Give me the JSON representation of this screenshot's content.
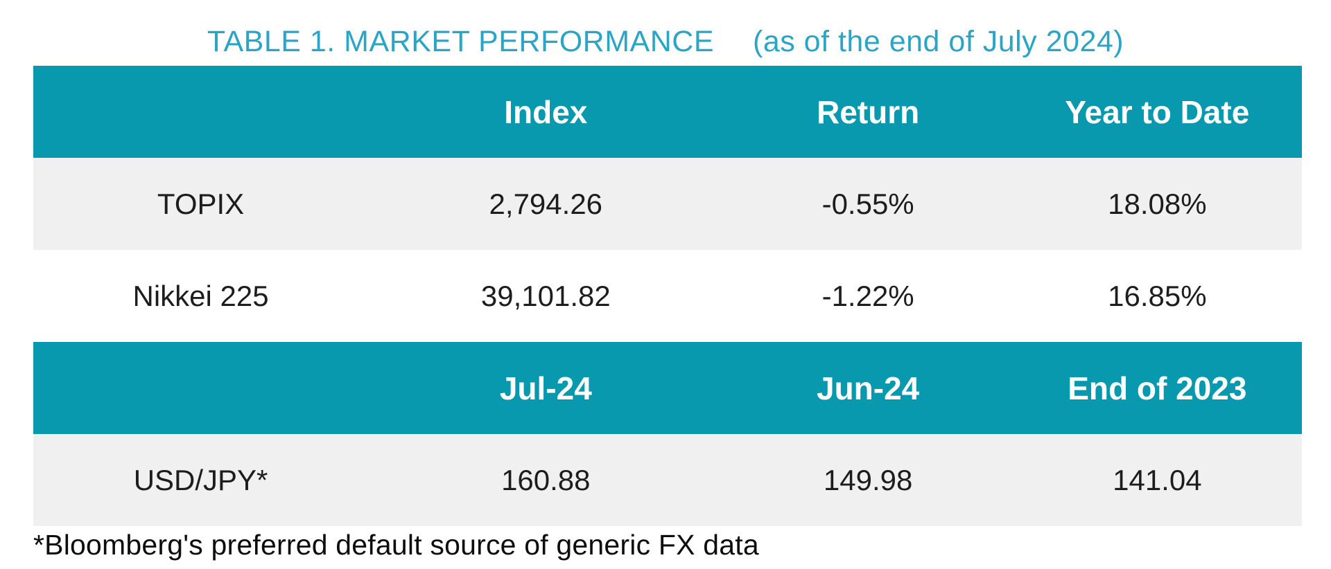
{
  "title": {
    "main": "TABLE 1. MARKET PERFORMANCE",
    "sub": "(as of the end of July 2024)"
  },
  "colors": {
    "header_bg": "#0999af",
    "header_text": "#ffffff",
    "title_text": "#2ba5c6",
    "row_alt_bg": "#f0f0f0",
    "body_text": "#1d1d1d"
  },
  "chart_data": {
    "type": "table",
    "title": "TABLE 1. MARKET PERFORMANCE",
    "subtitle": "(as of the end of July 2024)",
    "sections": [
      {
        "headers": [
          "",
          "Index",
          "Return",
          "Year to Date"
        ],
        "rows": [
          [
            "TOPIX",
            "2,794.26",
            "-0.55%",
            "18.08%"
          ],
          [
            "Nikkei 225",
            "39,101.82",
            "-1.22%",
            "16.85%"
          ]
        ]
      },
      {
        "headers": [
          "",
          "Jul-24",
          "Jun-24",
          "End of 2023"
        ],
        "rows": [
          [
            "USD/JPY*",
            "160.88",
            "149.98",
            "141.04"
          ]
        ]
      }
    ],
    "footnote": "*Bloomberg's preferred default source of generic FX data"
  }
}
